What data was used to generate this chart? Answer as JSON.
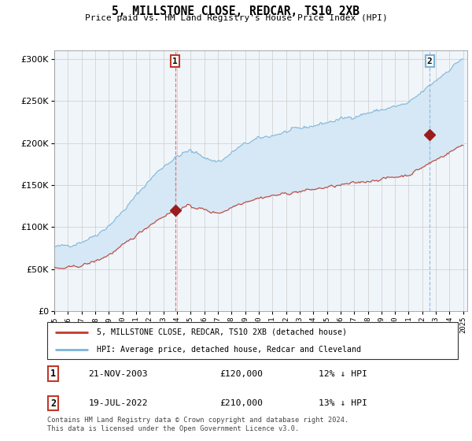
{
  "title": "5, MILLSTONE CLOSE, REDCAR, TS10 2XB",
  "subtitle": "Price paid vs. HM Land Registry's House Price Index (HPI)",
  "legend_line1": "5, MILLSTONE CLOSE, REDCAR, TS10 2XB (detached house)",
  "legend_line2": "HPI: Average price, detached house, Redcar and Cleveland",
  "table_rows": [
    {
      "num": "1",
      "date": "21-NOV-2003",
      "price": "£120,000",
      "pct": "12% ↓ HPI"
    },
    {
      "num": "2",
      "date": "19-JUL-2022",
      "price": "£210,000",
      "pct": "13% ↓ HPI"
    }
  ],
  "footer": "Contains HM Land Registry data © Crown copyright and database right 2024.\nThis data is licensed under the Open Government Licence v3.0.",
  "hpi_color": "#7ab4d8",
  "price_color": "#c0392b",
  "fill_color": "#d6e8f5",
  "vline1_color": "#e06060",
  "vline2_color": "#8ab4d8",
  "marker_color": "#9b1c1c",
  "ylim": [
    0,
    310000
  ],
  "yticks": [
    0,
    50000,
    100000,
    150000,
    200000,
    250000,
    300000
  ],
  "sale1_year": 2003.875,
  "sale2_year": 2022.542,
  "sale1_price": 120000,
  "sale2_price": 210000,
  "xstart": 1995,
  "xend": 2025,
  "grid_color": "#cccccc",
  "plot_bg_color": "#f0f5fa"
}
